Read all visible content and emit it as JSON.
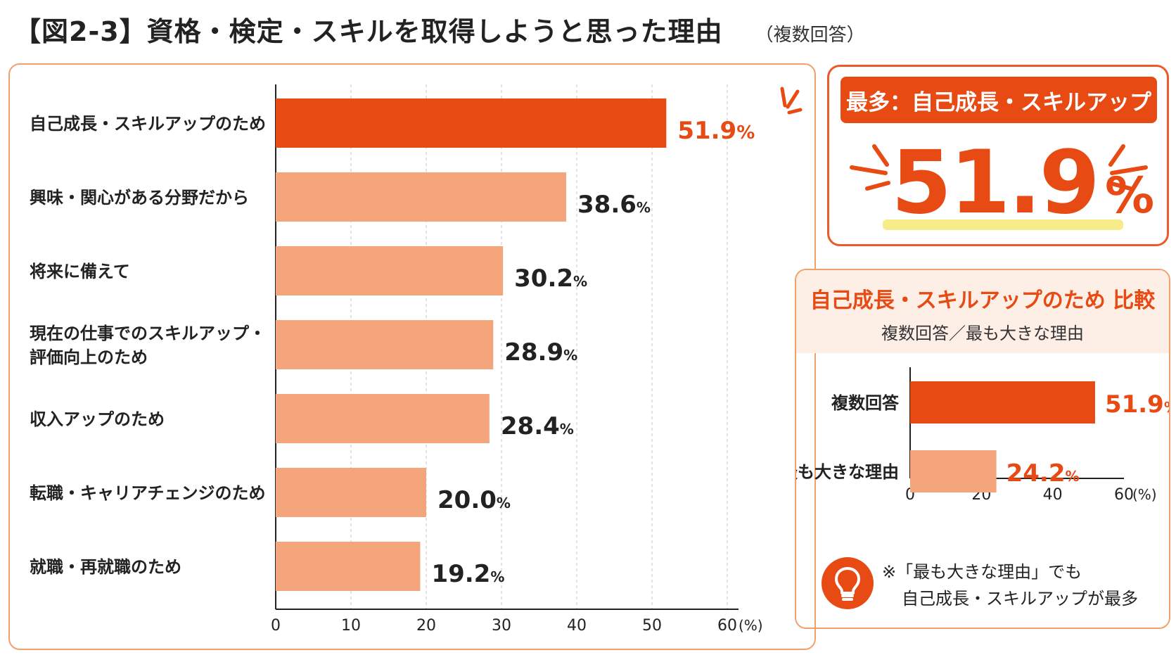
{
  "header": {
    "title": "【図2-3】資格・検定・スキルを取得しようと思った理由",
    "subtitle": "（複数回答）"
  },
  "highlight": {
    "banner": "最多：自己成長・スキルアップ",
    "value": "51.9",
    "unit": "%"
  },
  "comparison_panel": {
    "title": "自己成長・スキルアップのため 比較",
    "subtitle": "複数回答／最も大きな理由",
    "note": [
      "※「最も大きな理由」でも",
      "自己成長・スキルアップが最多"
    ]
  },
  "icons": [
    "burst-icon",
    "lightbulb-icon"
  ],
  "colors": {
    "accent": "#e84a14",
    "bar_light": "#f5a57c",
    "border": "#f2a06c",
    "highlight_underline": "#f6ec8a"
  },
  "chart_data": [
    {
      "type": "bar",
      "orientation": "horizontal",
      "categories": [
        [
          "自己成長・スキルアップのため"
        ],
        [
          "興味・関心がある分野だから"
        ],
        [
          "将来に備えて"
        ],
        [
          "現在の仕事でのスキルアップ・",
          "評価向上のため"
        ],
        [
          "収入アップのため"
        ],
        [
          "転職・キャリアチェンジのため"
        ],
        [
          "就職・再就職のため"
        ]
      ],
      "values": [
        51.9,
        38.6,
        30.2,
        28.9,
        28.4,
        20.0,
        19.2
      ],
      "value_labels": [
        "51.9",
        "38.6",
        "30.2",
        "28.9",
        "28.4",
        "20.0",
        "19.2"
      ],
      "value_unit": "%",
      "highlight_index": 0,
      "xlim": [
        0,
        60
      ],
      "xticks": [
        0,
        10,
        20,
        30,
        40,
        50,
        60
      ],
      "xtick_labels": [
        "0",
        "10",
        "20",
        "30",
        "40",
        "50",
        "60"
      ],
      "axis_unit": "(%)",
      "grid": true
    },
    {
      "type": "bar",
      "orientation": "horizontal",
      "categories": [
        [
          "複数回答"
        ],
        [
          "最も大きな理由"
        ]
      ],
      "values": [
        51.9,
        24.2
      ],
      "value_labels": [
        "51.9",
        "24.2"
      ],
      "value_unit": "%",
      "highlight_index": 0,
      "xlim": [
        0,
        60
      ],
      "xticks": [
        0,
        20,
        40,
        60
      ],
      "xtick_labels": [
        "0",
        "20",
        "40",
        "60"
      ],
      "axis_unit": "(%)",
      "grid": false
    }
  ]
}
